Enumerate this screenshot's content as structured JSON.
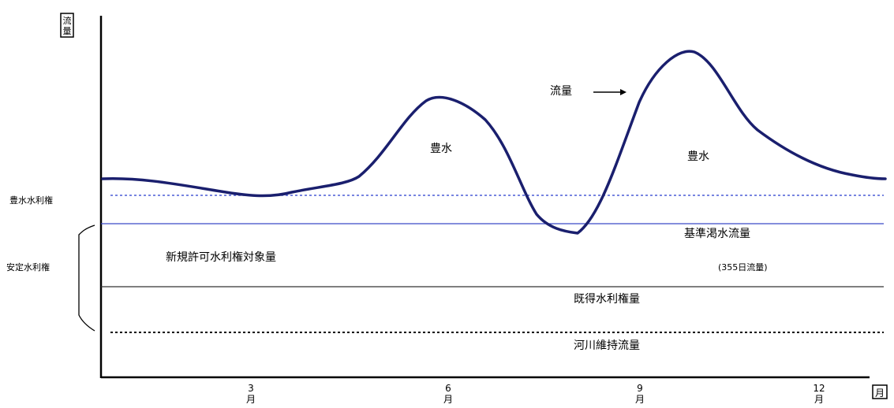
{
  "axes": {
    "y_label": "流量",
    "x_unit": "月",
    "month_ticks": [
      {
        "value": "3",
        "unit": "月"
      },
      {
        "value": "6",
        "unit": "月"
      },
      {
        "value": "9",
        "unit": "月"
      },
      {
        "value": "12",
        "unit": "月"
      }
    ]
  },
  "flow_label": "流量",
  "surplus_labels": [
    "豊水",
    "豊水"
  ],
  "left_labels": {
    "surplus_rights": "豊水水利権",
    "stable_rights": "安定水利権"
  },
  "zone_labels": {
    "new_permit": "新規許可水利権対象量",
    "reference_drought_flow": "基準渇水流量",
    "reference_drought_note": "(355日流量)",
    "existing_rights": "既得水利権量",
    "maintenance_flow": "河川維持流量"
  },
  "colors": {
    "curve": "#1a1f6e",
    "surplus_line": "#4a5bd6",
    "reference_line": "#3a4bc8",
    "axis": "#000000"
  }
}
